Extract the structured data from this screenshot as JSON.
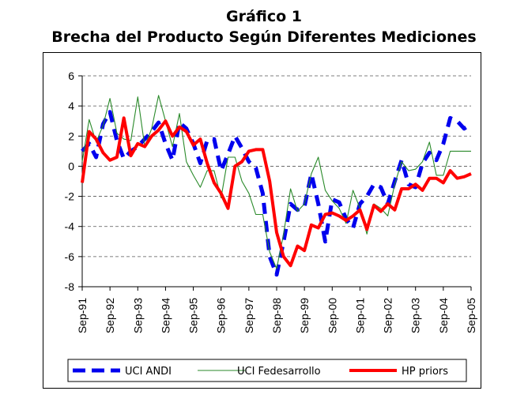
{
  "chart_data": {
    "type": "line",
    "title": "Gráfico 1",
    "subtitle": "Brecha del Producto Según Diferentes Mediciones",
    "ylim": [
      -8,
      6
    ],
    "yticks": [
      6,
      4,
      2,
      0,
      -2,
      -4,
      -6,
      -8
    ],
    "xlim": [
      0,
      56
    ],
    "grid": true,
    "legend_position": "bottom",
    "x_ticks": [
      {
        "label": "Sep-91",
        "x": 0
      },
      {
        "label": "Sep-92",
        "x": 4
      },
      {
        "label": "Sep-93",
        "x": 8
      },
      {
        "label": "Sep-94",
        "x": 12
      },
      {
        "label": "Sep-95",
        "x": 16
      },
      {
        "label": "Sep-96",
        "x": 20
      },
      {
        "label": "Sep-97",
        "x": 24
      },
      {
        "label": "Sep-98",
        "x": 28
      },
      {
        "label": "Sep-99",
        "x": 32
      },
      {
        "label": "Sep-00",
        "x": 36
      },
      {
        "label": "Sep-01",
        "x": 40
      },
      {
        "label": "Sep-02",
        "x": 44
      },
      {
        "label": "Sep-03",
        "x": 48
      },
      {
        "label": "Sep-04",
        "x": 52
      },
      {
        "label": "Sep-05",
        "x": 56
      }
    ],
    "series": [
      {
        "name": "UCI ANDI",
        "color": "#0000ee",
        "style": "dashed-thick",
        "x": [
          0,
          1,
          2,
          3,
          4,
          5,
          6,
          7,
          8,
          9,
          10,
          11,
          12,
          13,
          14,
          15,
          16,
          17,
          18,
          19,
          20,
          21,
          22,
          23,
          24,
          25,
          26,
          27,
          28,
          29,
          30,
          31,
          32,
          33,
          34,
          35,
          36,
          37,
          38,
          39,
          40,
          41,
          42,
          43,
          44,
          45,
          46,
          47,
          48,
          49,
          50,
          51,
          52,
          53,
          54,
          55,
          56
        ],
        "y": [
          1.0,
          1.5,
          0.6,
          2.8,
          3.6,
          1.7,
          0.5,
          1.0,
          1.3,
          1.8,
          2.3,
          2.9,
          1.5,
          0.4,
          2.9,
          2.5,
          1.5,
          0.2,
          1.7,
          1.8,
          -0.3,
          0.8,
          2.0,
          1.2,
          0.3,
          -0.1,
          -1.8,
          -6.0,
          -7.2,
          -5.0,
          -2.5,
          -2.9,
          -2.7,
          -0.5,
          -2.5,
          -5.0,
          -2.2,
          -2.4,
          -3.5,
          -4.1,
          -2.5,
          -2.0,
          -1.2,
          -1.4,
          -2.5,
          -1.0,
          0.4,
          -1.2,
          -1.4,
          0.2,
          0.9,
          0.4,
          1.5,
          3.2,
          3.0,
          2.5,
          2.8
        ]
      },
      {
        "name": "UCI Fedesarrollo",
        "color": "#2a8a2a",
        "style": "solid-thin",
        "x": [
          0,
          1,
          2,
          3,
          4,
          5,
          6,
          7,
          8,
          9,
          10,
          11,
          12,
          13,
          14,
          15,
          16,
          17,
          18,
          19,
          20,
          21,
          22,
          23,
          24,
          25,
          26,
          27,
          28,
          29,
          30,
          31,
          32,
          33,
          34,
          35,
          36,
          37,
          38,
          39,
          40,
          41,
          42,
          43,
          44,
          45,
          46,
          47,
          48,
          49,
          50,
          51,
          52,
          53,
          54,
          55,
          56
        ],
        "y": [
          0.3,
          3.1,
          1.6,
          2.7,
          4.5,
          2.2,
          1.8,
          1.7,
          4.6,
          1.3,
          2.5,
          4.7,
          3.0,
          1.3,
          3.5,
          0.3,
          -0.6,
          -1.4,
          -0.3,
          -0.3,
          -2.1,
          0.6,
          0.6,
          -1.0,
          -1.8,
          -3.2,
          -3.2,
          -5.7,
          -6.8,
          -4.5,
          -1.5,
          -3.0,
          -2.5,
          -0.5,
          0.6,
          -1.6,
          -2.3,
          -2.8,
          -3.8,
          -1.6,
          -2.8,
          -4.5,
          -2.5,
          -2.8,
          -3.3,
          -1.2,
          0.3,
          -0.3,
          -0.2,
          0.3,
          1.6,
          -0.6,
          -0.6,
          1.0,
          1.0,
          1.0,
          1.0
        ]
      },
      {
        "name": "HP priors",
        "color": "#ff0000",
        "style": "solid-thick",
        "x": [
          0,
          1,
          2,
          3,
          4,
          5,
          6,
          7,
          8,
          9,
          10,
          11,
          12,
          13,
          14,
          15,
          16,
          17,
          18,
          19,
          20,
          21,
          22,
          23,
          24,
          25,
          26,
          27,
          28,
          29,
          30,
          31,
          32,
          33,
          34,
          35,
          36,
          37,
          38,
          39,
          40,
          41,
          42,
          43,
          44,
          45,
          46,
          47,
          48,
          49,
          50,
          51,
          52,
          53,
          54,
          55,
          56
        ],
        "y": [
          -1.1,
          2.3,
          1.8,
          0.9,
          0.4,
          0.6,
          3.2,
          0.7,
          1.5,
          1.3,
          2.0,
          2.4,
          3.0,
          2.0,
          2.6,
          2.3,
          1.4,
          1.8,
          0.2,
          -1.1,
          -1.8,
          -2.8,
          0.0,
          0.3,
          1.0,
          1.1,
          1.1,
          -1.0,
          -4.4,
          -6.0,
          -6.6,
          -5.3,
          -5.6,
          -3.9,
          -4.1,
          -3.2,
          -3.1,
          -3.3,
          -3.6,
          -3.3,
          -2.9,
          -4.2,
          -2.6,
          -3.0,
          -2.5,
          -2.9,
          -1.5,
          -1.5,
          -1.2,
          -1.6,
          -0.8,
          -0.8,
          -1.1,
          -0.3,
          -0.8,
          -0.7,
          -0.5
        ]
      }
    ]
  }
}
